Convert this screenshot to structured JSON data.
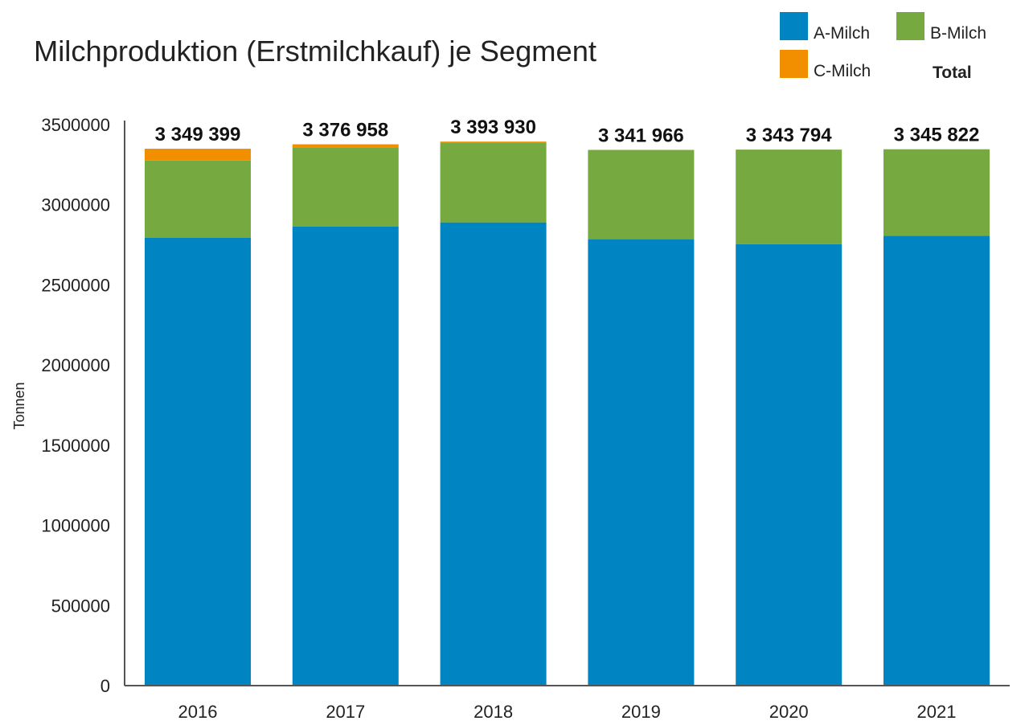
{
  "chart_data": {
    "type": "bar",
    "stacked": true,
    "title": "Milchproduktion (Erstmilchkauf) je Segment",
    "xlabel": "",
    "ylabel": "Tonnen",
    "ylim": [
      0,
      3500000
    ],
    "yticks": [
      "0",
      "500000",
      "1000000",
      "1500000",
      "2000000",
      "2500000",
      "3000000",
      "3500000"
    ],
    "categories": [
      "2016",
      "2017",
      "2018",
      "2019",
      "2020",
      "2021"
    ],
    "series": [
      {
        "name": "A-Milch",
        "color": "#0085c2",
        "values": [
          2793000,
          2865000,
          2890000,
          2785000,
          2753000,
          2807000
        ]
      },
      {
        "name": "B-Milch",
        "color": "#76a93f",
        "values": [
          482000,
          493000,
          498000,
          557000,
          591000,
          539000
        ]
      },
      {
        "name": "C-Milch",
        "color": "#f18f00",
        "values": [
          74399,
          18958,
          5930,
          0,
          0,
          0
        ]
      }
    ],
    "totals_label": "Total",
    "totals": [
      "3 349 399",
      "3 376 958",
      "3 393 930",
      "3 341 966",
      "3 343 794",
      "3 345 822"
    ],
    "total_values": [
      3349399,
      3376958,
      3393930,
      3341966,
      3343794,
      3345822
    ],
    "legend_placement": "top-right",
    "grid": false
  }
}
